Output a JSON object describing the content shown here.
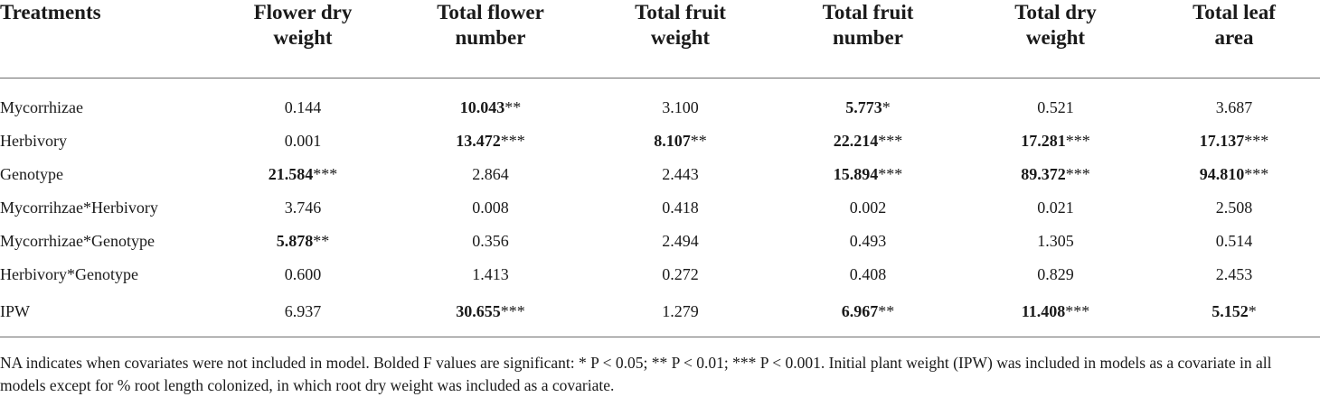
{
  "table": {
    "headers": [
      {
        "line1": "Treatments",
        "line2": ""
      },
      {
        "line1": "Flower dry",
        "line2": "weight"
      },
      {
        "line1": "Total flower",
        "line2": "number"
      },
      {
        "line1": "Total fruit",
        "line2": "weight"
      },
      {
        "line1": "Total fruit",
        "line2": "number"
      },
      {
        "line1": "Total dry",
        "line2": "weight"
      },
      {
        "line1": "Total leaf",
        "line2": "area"
      }
    ],
    "rows": [
      {
        "label": "Mycorrhizae",
        "cells": [
          {
            "v": "0.144",
            "s": "",
            "bold": false
          },
          {
            "v": "10.043",
            "s": "**",
            "bold": true
          },
          {
            "v": "3.100",
            "s": "",
            "bold": false
          },
          {
            "v": "5.773",
            "s": "*",
            "bold": true
          },
          {
            "v": "0.521",
            "s": "",
            "bold": false
          },
          {
            "v": "3.687",
            "s": "",
            "bold": false
          }
        ]
      },
      {
        "label": "Herbivory",
        "cells": [
          {
            "v": "0.001",
            "s": "",
            "bold": false
          },
          {
            "v": "13.472",
            "s": "***",
            "bold": true
          },
          {
            "v": "8.107",
            "s": "**",
            "bold": true
          },
          {
            "v": "22.214",
            "s": "***",
            "bold": true
          },
          {
            "v": "17.281",
            "s": "***",
            "bold": true
          },
          {
            "v": "17.137",
            "s": "***",
            "bold": true
          }
        ]
      },
      {
        "label": "Genotype",
        "cells": [
          {
            "v": "21.584",
            "s": "***",
            "bold": true
          },
          {
            "v": "2.864",
            "s": "",
            "bold": false
          },
          {
            "v": "2.443",
            "s": "",
            "bold": false
          },
          {
            "v": "15.894",
            "s": "***",
            "bold": true
          },
          {
            "v": "89.372",
            "s": "***",
            "bold": true
          },
          {
            "v": "94.810",
            "s": "***",
            "bold": true
          }
        ]
      },
      {
        "label": "Mycorrihzae*Herbivory",
        "cells": [
          {
            "v": "3.746",
            "s": "",
            "bold": false
          },
          {
            "v": "0.008",
            "s": "",
            "bold": false
          },
          {
            "v": "0.418",
            "s": "",
            "bold": false
          },
          {
            "v": "0.002",
            "s": "",
            "bold": false
          },
          {
            "v": "0.021",
            "s": "",
            "bold": false
          },
          {
            "v": "2.508",
            "s": "",
            "bold": false
          }
        ]
      },
      {
        "label": "Mycorrhizae*Genotype",
        "cells": [
          {
            "v": "5.878",
            "s": "**",
            "bold": true
          },
          {
            "v": "0.356",
            "s": "",
            "bold": false
          },
          {
            "v": "2.494",
            "s": "",
            "bold": false
          },
          {
            "v": "0.493",
            "s": "",
            "bold": false
          },
          {
            "v": "1.305",
            "s": "",
            "bold": false
          },
          {
            "v": "0.514",
            "s": "",
            "bold": false
          }
        ]
      },
      {
        "label": "Herbivory*Genotype",
        "cells": [
          {
            "v": "0.600",
            "s": "",
            "bold": false
          },
          {
            "v": "1.413",
            "s": "",
            "bold": false
          },
          {
            "v": "0.272",
            "s": "",
            "bold": false
          },
          {
            "v": "0.408",
            "s": "",
            "bold": false
          },
          {
            "v": "0.829",
            "s": "",
            "bold": false
          },
          {
            "v": "2.453",
            "s": "",
            "bold": false
          }
        ]
      },
      {
        "label": "IPW",
        "cells": [
          {
            "v": "6.937",
            "s": "",
            "bold": false
          },
          {
            "v": "30.655",
            "s": "***",
            "bold": true
          },
          {
            "v": "1.279",
            "s": "",
            "bold": false
          },
          {
            "v": "6.967",
            "s": "**",
            "bold": true
          },
          {
            "v": "11.408",
            "s": "***",
            "bold": true
          },
          {
            "v": "5.152",
            "s": "*",
            "bold": true
          }
        ]
      }
    ]
  },
  "footnote": "NA indicates when covariates were not included in model. Bolded F values are significant: * P < 0.05; ** P < 0.01; *** P < 0.001. Initial plant weight (IPW) was included in models as a covariate in all models except for % root length colonized, in which root dry weight was included as a covariate."
}
